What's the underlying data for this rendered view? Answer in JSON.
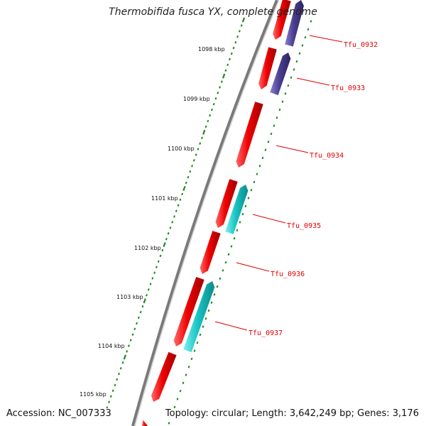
{
  "title": "Thermobifida fusca YX, complete genome",
  "footer": {
    "accession": "Accession: NC_007333",
    "summary": "Topology: circular; Length: 3,642,249 bp; Genes: 3,176"
  },
  "scale_labels": [
    "1098 kbp",
    "1099 kbp",
    "1100 kbp",
    "1101 kbp",
    "1102 kbp",
    "1103 kbp",
    "1104 kbp",
    "1105 kbp"
  ],
  "gene_labels": [
    "Tfu_0932",
    "Tfu_0933",
    "Tfu_0934",
    "Tfu_0935",
    "Tfu_0936",
    "Tfu_0937"
  ],
  "colors": {
    "cds_forward": "#ee0000",
    "cds_reverse_purple": "#4b3f8f",
    "cds_reverse_cyan": "#19c4c4",
    "backbone": "#808080",
    "ticks": "#1a8a1a",
    "label_red": "#e00000"
  }
}
